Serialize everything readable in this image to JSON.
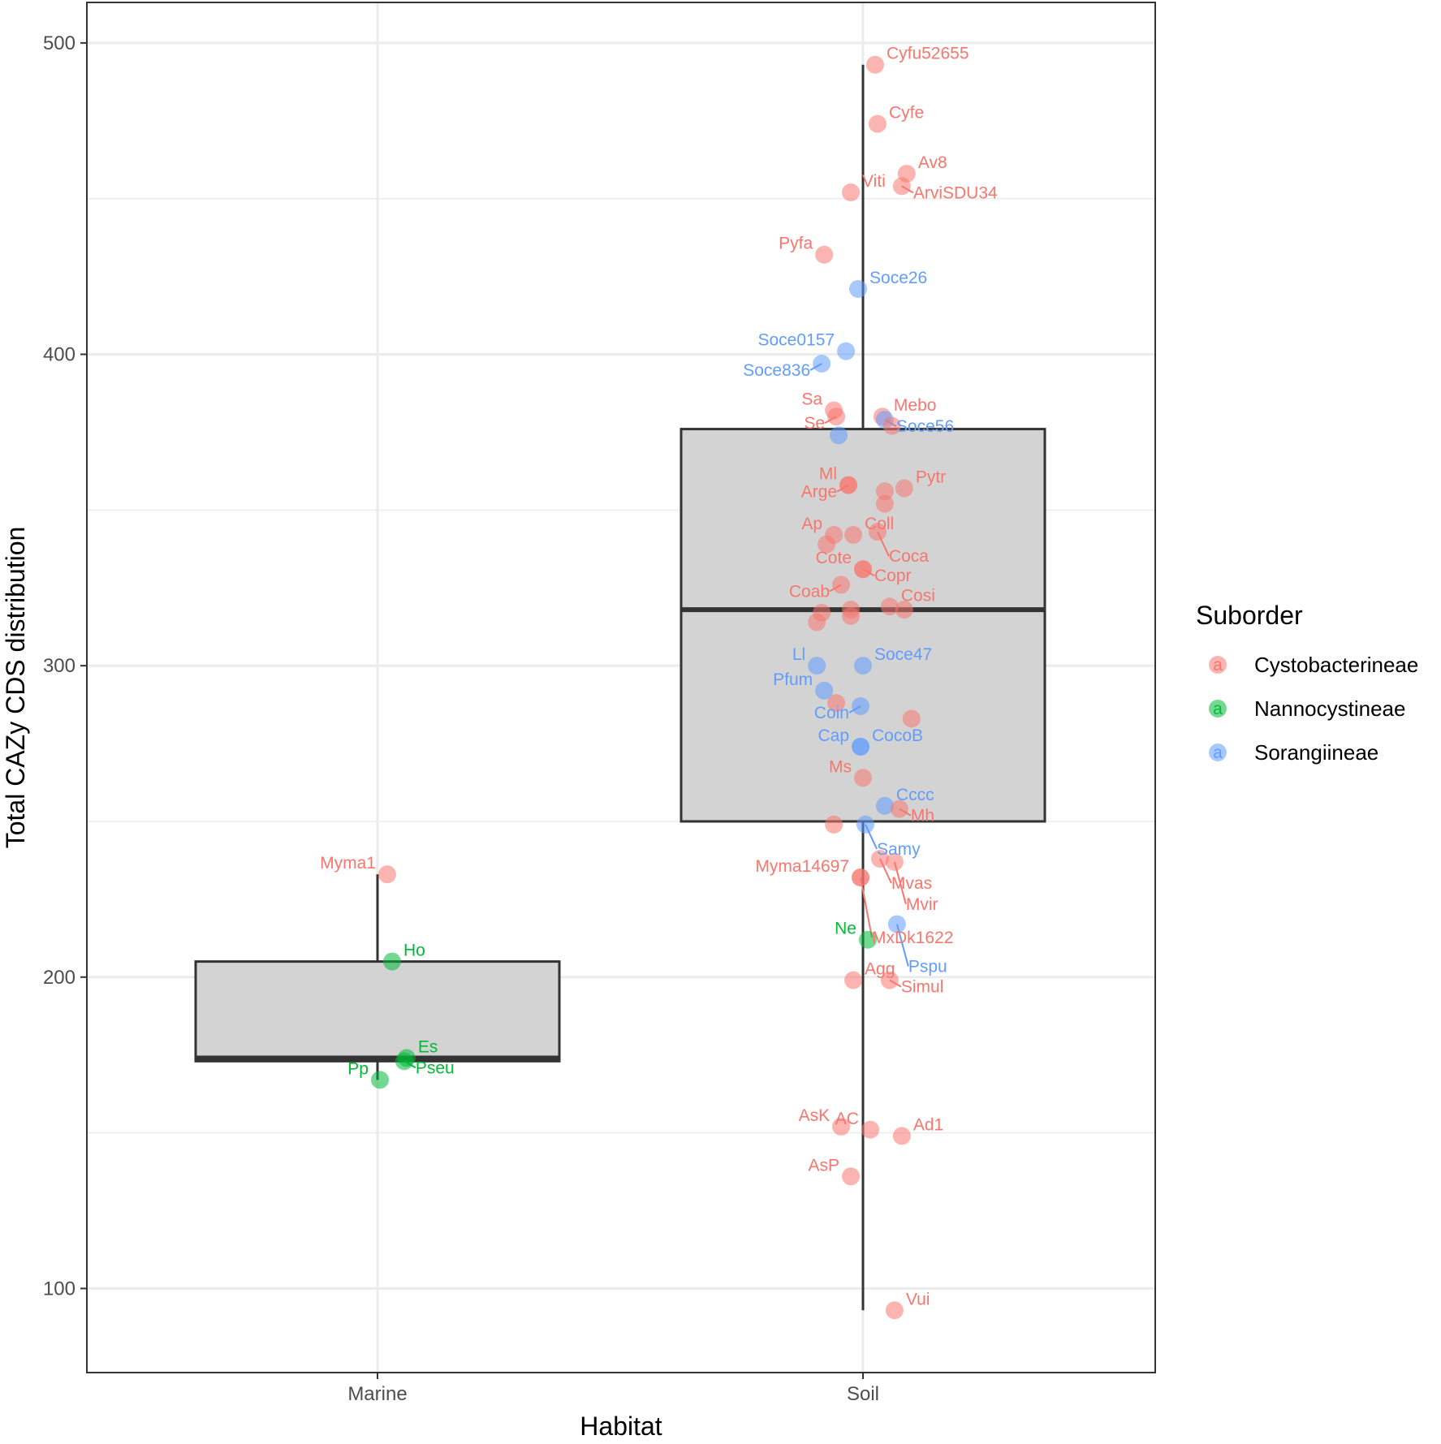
{
  "chart_data": {
    "type": "boxplot",
    "xlabel": "Habitat",
    "ylabel": "Total CAZy CDS distribution",
    "ylim": [
      73,
      513
    ],
    "yticks": [
      100,
      200,
      300,
      400,
      500
    ],
    "categories": [
      "Marine",
      "Soil"
    ],
    "grid": true,
    "colors": {
      "Cystobacterineae": "#F8766D",
      "Nannocystineae": "#00BA38",
      "Sorangiineae": "#619CFF",
      "box_fill": "#D3D3D3",
      "box_line": "#333333"
    },
    "legend": {
      "title": "Suborder",
      "position": "right",
      "key_glyph": "a",
      "entries": [
        "Cystobacterineae",
        "Nannocystineae",
        "Sorangiineae"
      ]
    },
    "boxes": [
      {
        "category": "Marine",
        "min": 167,
        "q1": 173,
        "median": 174,
        "q3": 205,
        "max": 233
      },
      {
        "category": "Soil",
        "min": 93,
        "q1": 250,
        "median": 318,
        "q3": 376,
        "max": 493
      }
    ],
    "points": [
      {
        "label": "Myma1",
        "category": "Marine",
        "suborder": "Cystobacterineae",
        "jitter": 0.02,
        "y": 233
      },
      {
        "label": "Ho",
        "category": "Marine",
        "suborder": "Nannocystineae",
        "jitter": 0.03,
        "y": 205
      },
      {
        "label": "Es",
        "category": "Marine",
        "suborder": "Nannocystineae",
        "jitter": 0.06,
        "y": 174
      },
      {
        "label": "Pseu",
        "category": "Marine",
        "suborder": "Nannocystineae",
        "jitter": 0.055,
        "y": 173
      },
      {
        "label": "Pp",
        "category": "Marine",
        "suborder": "Nannocystineae",
        "jitter": 0.005,
        "y": 167
      },
      {
        "label": "Cyfu52655",
        "category": "Soil",
        "suborder": "Cystobacterineae",
        "jitter": 0.025,
        "y": 493
      },
      {
        "label": "Cyfe",
        "category": "Soil",
        "suborder": "Cystobacterineae",
        "jitter": 0.03,
        "y": 474
      },
      {
        "label": "Av8",
        "category": "Soil",
        "suborder": "Cystobacterineae",
        "jitter": 0.09,
        "y": 458
      },
      {
        "label": "ArviSDU34",
        "category": "Soil",
        "suborder": "Cystobacterineae",
        "jitter": 0.08,
        "y": 454
      },
      {
        "label": "Viti",
        "category": "Soil",
        "suborder": "Cystobacterineae",
        "jitter": -0.025,
        "y": 452
      },
      {
        "label": "Pyfa",
        "category": "Soil",
        "suborder": "Cystobacterineae",
        "jitter": -0.08,
        "y": 432
      },
      {
        "label": "Soce26",
        "category": "Soil",
        "suborder": "Sorangiineae",
        "jitter": -0.01,
        "y": 421
      },
      {
        "label": "Soce0157",
        "category": "Soil",
        "suborder": "Sorangiineae",
        "jitter": -0.035,
        "y": 401
      },
      {
        "label": "Soce836",
        "category": "Soil",
        "suborder": "Sorangiineae",
        "jitter": -0.085,
        "y": 397
      },
      {
        "label": "Sa",
        "category": "Soil",
        "suborder": "Cystobacterineae",
        "jitter": -0.06,
        "y": 382
      },
      {
        "label": "Se",
        "category": "Soil",
        "suborder": "Cystobacterineae",
        "jitter": -0.055,
        "y": 380
      },
      {
        "label": "Mebo",
        "category": "Soil",
        "suborder": "Cystobacterineae",
        "jitter": 0.04,
        "y": 380
      },
      {
        "label": "Soce56",
        "category": "Soil",
        "suborder": "Sorangiineae",
        "jitter": 0.045,
        "y": 379
      },
      {
        "label": "",
        "category": "Soil",
        "suborder": "Cystobacterineae",
        "jitter": 0.06,
        "y": 377
      },
      {
        "label": "",
        "category": "Soil",
        "suborder": "Sorangiineae",
        "jitter": -0.05,
        "y": 374
      },
      {
        "label": "Ml",
        "category": "Soil",
        "suborder": "Cystobacterineae",
        "jitter": -0.03,
        "y": 358
      },
      {
        "label": "Arge",
        "category": "Soil",
        "suborder": "Cystobacterineae",
        "jitter": -0.03,
        "y": 358
      },
      {
        "label": "Pytr",
        "category": "Soil",
        "suborder": "Cystobacterineae",
        "jitter": 0.085,
        "y": 357
      },
      {
        "label": "",
        "category": "Soil",
        "suborder": "Cystobacterineae",
        "jitter": 0.045,
        "y": 356
      },
      {
        "label": "",
        "category": "Soil",
        "suborder": "Cystobacterineae",
        "jitter": 0.045,
        "y": 352
      },
      {
        "label": "Coll",
        "category": "Soil",
        "suborder": "Cystobacterineae",
        "jitter": -0.02,
        "y": 342
      },
      {
        "label": "Coca",
        "category": "Soil",
        "suborder": "Cystobacterineae",
        "jitter": 0.03,
        "y": 343
      },
      {
        "label": "Ap",
        "category": "Soil",
        "suborder": "Cystobacterineae",
        "jitter": -0.06,
        "y": 342
      },
      {
        "label": "",
        "category": "Soil",
        "suborder": "Cystobacterineae",
        "jitter": -0.075,
        "y": 339
      },
      {
        "label": "Copr",
        "category": "Soil",
        "suborder": "Cystobacterineae",
        "jitter": 0.0,
        "y": 331
      },
      {
        "label": "Cote",
        "category": "Soil",
        "suborder": "Cystobacterineae",
        "jitter": 0.0,
        "y": 331
      },
      {
        "label": "Coab",
        "category": "Soil",
        "suborder": "Cystobacterineae",
        "jitter": -0.045,
        "y": 326
      },
      {
        "label": "Cosi",
        "category": "Soil",
        "suborder": "Cystobacterineae",
        "jitter": 0.055,
        "y": 319
      },
      {
        "label": "",
        "category": "Soil",
        "suborder": "Cystobacterineae",
        "jitter": 0.085,
        "y": 318
      },
      {
        "label": "",
        "category": "Soil",
        "suborder": "Cystobacterineae",
        "jitter": -0.025,
        "y": 318
      },
      {
        "label": "",
        "category": "Soil",
        "suborder": "Cystobacterineae",
        "jitter": -0.025,
        "y": 316
      },
      {
        "label": "",
        "category": "Soil",
        "suborder": "Cystobacterineae",
        "jitter": -0.085,
        "y": 317
      },
      {
        "label": "",
        "category": "Soil",
        "suborder": "Cystobacterineae",
        "jitter": -0.095,
        "y": 314
      },
      {
        "label": "Ll",
        "category": "Soil",
        "suborder": "Sorangiineae",
        "jitter": -0.095,
        "y": 300
      },
      {
        "label": "Soce47",
        "category": "Soil",
        "suborder": "Sorangiineae",
        "jitter": 0.0,
        "y": 300
      },
      {
        "label": "Pfum",
        "category": "Soil",
        "suborder": "Sorangiineae",
        "jitter": -0.08,
        "y": 292
      },
      {
        "label": "",
        "category": "Soil",
        "suborder": "Cystobacterineae",
        "jitter": -0.055,
        "y": 288
      },
      {
        "label": "Coin",
        "category": "Soil",
        "suborder": "Sorangiineae",
        "jitter": -0.005,
        "y": 287
      },
      {
        "label": "",
        "category": "Soil",
        "suborder": "Cystobacterineae",
        "jitter": 0.1,
        "y": 283
      },
      {
        "label": "Cap",
        "category": "Soil",
        "suborder": "Sorangiineae",
        "jitter": -0.005,
        "y": 274
      },
      {
        "label": "CocoB",
        "category": "Soil",
        "suborder": "Sorangiineae",
        "jitter": -0.005,
        "y": 274
      },
      {
        "label": "Ms",
        "category": "Soil",
        "suborder": "Cystobacterineae",
        "jitter": 0.0,
        "y": 264
      },
      {
        "label": "Cccc",
        "category": "Soil",
        "suborder": "Sorangiineae",
        "jitter": 0.045,
        "y": 255
      },
      {
        "label": "Mh",
        "category": "Soil",
        "suborder": "Cystobacterineae",
        "jitter": 0.075,
        "y": 254
      },
      {
        "label": "Samy",
        "category": "Soil",
        "suborder": "Sorangiineae",
        "jitter": 0.005,
        "y": 249
      },
      {
        "label": "",
        "category": "Soil",
        "suborder": "Cystobacterineae",
        "jitter": -0.06,
        "y": 249
      },
      {
        "label": "Mvas",
        "category": "Soil",
        "suborder": "Cystobacterineae",
        "jitter": 0.035,
        "y": 238
      },
      {
        "label": "Mvir",
        "category": "Soil",
        "suborder": "Cystobacterineae",
        "jitter": 0.065,
        "y": 237
      },
      {
        "label": "MxDk1622",
        "category": "Soil",
        "suborder": "Cystobacterineae",
        "jitter": -0.005,
        "y": 232
      },
      {
        "label": "Myma14697",
        "category": "Soil",
        "suborder": "Cystobacterineae",
        "jitter": -0.005,
        "y": 232
      },
      {
        "label": "Pspu",
        "category": "Soil",
        "suborder": "Sorangiineae",
        "jitter": 0.07,
        "y": 217
      },
      {
        "label": "Ne",
        "category": "Soil",
        "suborder": "Nannocystineae",
        "jitter": 0.01,
        "y": 212
      },
      {
        "label": "Agg",
        "category": "Soil",
        "suborder": "Cystobacterineae",
        "jitter": -0.02,
        "y": 199
      },
      {
        "label": "Simul",
        "category": "Soil",
        "suborder": "Cystobacterineae",
        "jitter": 0.055,
        "y": 199
      },
      {
        "label": "AsK",
        "category": "Soil",
        "suborder": "Cystobacterineae",
        "jitter": -0.045,
        "y": 152
      },
      {
        "label": "AC",
        "category": "Soil",
        "suborder": "Cystobacterineae",
        "jitter": 0.015,
        "y": 151
      },
      {
        "label": "Ad1",
        "category": "Soil",
        "suborder": "Cystobacterineae",
        "jitter": 0.08,
        "y": 149
      },
      {
        "label": "AsP",
        "category": "Soil",
        "suborder": "Cystobacterineae",
        "jitter": -0.025,
        "y": 136
      },
      {
        "label": "Vui",
        "category": "Soil",
        "suborder": "Cystobacterineae",
        "jitter": 0.065,
        "y": 93
      }
    ]
  }
}
